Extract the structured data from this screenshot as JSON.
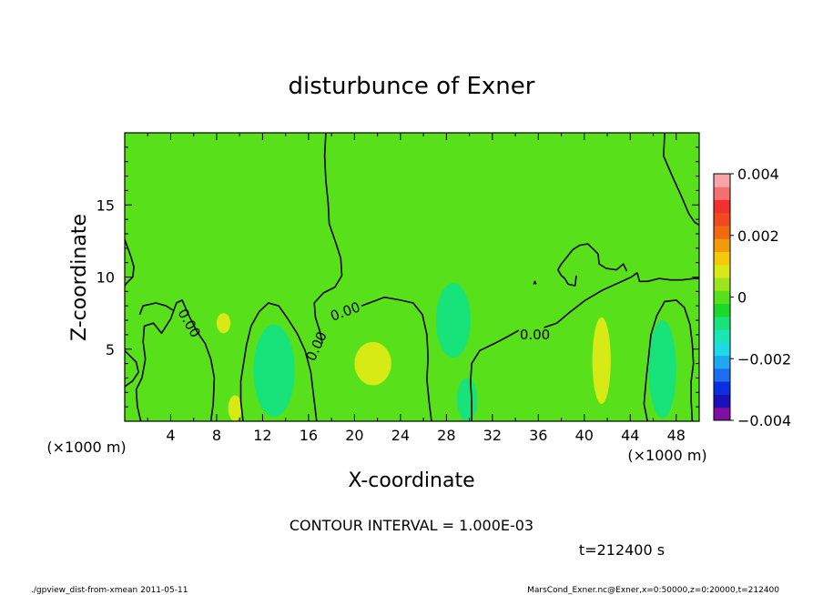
{
  "chart_data": {
    "type": "heatmap",
    "title": "disturbunce of Exner",
    "xlabel": "X-coordinate",
    "ylabel": "Z-coordinate",
    "x_unit_left": "(×1000 m)",
    "x_unit_right": "(×1000 m)",
    "xlim": [
      0,
      50
    ],
    "ylim": [
      0,
      20
    ],
    "x_ticks": [
      4,
      8,
      12,
      16,
      20,
      24,
      28,
      32,
      36,
      40,
      44,
      48
    ],
    "y_ticks": [
      5,
      10,
      15
    ],
    "contour_interval_text": "CONTOUR INTERVAL = 1.000E-03",
    "time_text": "t=212400 s",
    "contour_labels": [
      {
        "text": "0.00",
        "x": 5.6,
        "z": 6.8,
        "angle": 60
      },
      {
        "text": "0.00",
        "x": 16.7,
        "z": 5.2,
        "angle": -65
      },
      {
        "text": "0.00",
        "x": 19.2,
        "z": 7.6,
        "angle": -20
      },
      {
        "text": "0.00",
        "x": 35.7,
        "z": 6.0,
        "angle": 0
      }
    ],
    "colorbar": {
      "min": -0.004,
      "max": 0.004,
      "tick_labels": [
        "0.004",
        "0.002",
        "0",
        "−0.002",
        "−0.004"
      ],
      "tick_values": [
        0.004,
        0.002,
        0,
        -0.002,
        -0.004
      ],
      "colors_bottom_to_top": [
        "#7f0fa0",
        "#1d0fb8",
        "#0b2fe0",
        "#1b6ef0",
        "#1fa8f2",
        "#1fd8e8",
        "#1ae6b4",
        "#18e37a",
        "#1bd928",
        "#58e01a",
        "#9ae61c",
        "#d8ea16",
        "#f5c808",
        "#f39a08",
        "#f26a10",
        "#f24a20",
        "#f23030",
        "#f57070",
        "#f6a6a6"
      ]
    },
    "field": {
      "background_level": 0,
      "regions": [
        {
          "level": -0.001,
          "x": 13.0,
          "z": 3.5,
          "rx": 1.8,
          "rz": 3.2
        },
        {
          "level": -0.001,
          "x": 28.6,
          "z": 7.0,
          "rx": 1.5,
          "rz": 2.6
        },
        {
          "level": -0.001,
          "x": 29.8,
          "z": 1.5,
          "rx": 0.9,
          "rz": 1.5
        },
        {
          "level": -0.001,
          "x": 46.8,
          "z": 3.6,
          "rx": 1.2,
          "rz": 3.4
        },
        {
          "level": 0.001,
          "x": 21.6,
          "z": 4.0,
          "rx": 1.6,
          "rz": 1.5
        },
        {
          "level": 0.001,
          "x": 41.5,
          "z": 4.2,
          "rx": 0.8,
          "rz": 3.0
        },
        {
          "level": 0.001,
          "x": 8.6,
          "z": 6.8,
          "rx": 0.6,
          "rz": 0.7
        },
        {
          "level": 0.001,
          "x": 9.6,
          "z": 0.9,
          "rx": 0.6,
          "rz": 0.9
        }
      ],
      "zero_contours": [
        [
          [
            0,
            12.6
          ],
          [
            0.5,
            11.5
          ],
          [
            0.8,
            10.7
          ],
          [
            0.7,
            10.0
          ],
          [
            0.2,
            9.6
          ],
          [
            0,
            9.4
          ]
        ],
        [
          [
            0,
            4.9
          ],
          [
            0.5,
            4.5
          ],
          [
            1,
            4.1
          ],
          [
            1.2,
            3.4
          ],
          [
            0.7,
            2.8
          ],
          [
            0,
            2.4
          ]
        ],
        [
          [
            1.4,
            0
          ],
          [
            1.1,
            1.0
          ],
          [
            1.0,
            2.2
          ],
          [
            1.5,
            3.0
          ],
          [
            1.8,
            4.3
          ],
          [
            1.6,
            5.5
          ],
          [
            1.7,
            6.6
          ],
          [
            2.5,
            6.8
          ],
          [
            3.2,
            6.1
          ],
          [
            4.0,
            7.1
          ],
          [
            4.5,
            8.2
          ],
          [
            5.0,
            8.4
          ],
          [
            5.6,
            7.3
          ],
          [
            6.3,
            6.2
          ],
          [
            7.0,
            5.4
          ],
          [
            7.5,
            4.3
          ],
          [
            7.8,
            3.0
          ],
          [
            7.7,
            1.2
          ],
          [
            7.5,
            0
          ]
        ],
        [
          [
            1.3,
            7.4
          ],
          [
            1.6,
            8.0
          ],
          [
            2.7,
            8.2
          ],
          [
            3.6,
            8.0
          ],
          [
            4.2,
            7.7
          ]
        ],
        [
          [
            10.3,
            0
          ],
          [
            10.1,
            1.4
          ],
          [
            10.1,
            2.8
          ],
          [
            10.3,
            3.8
          ],
          [
            10.6,
            5.3
          ],
          [
            11.0,
            6.6
          ],
          [
            11.7,
            7.6
          ],
          [
            12.5,
            8.2
          ],
          [
            13.4,
            8.0
          ],
          [
            14.2,
            7.1
          ],
          [
            15.0,
            6.1
          ],
          [
            15.7,
            4.9
          ],
          [
            16.2,
            3.4
          ],
          [
            16.4,
            2.0
          ],
          [
            16.6,
            0.7
          ],
          [
            16.7,
            0
          ]
        ],
        [
          [
            17.2,
            5.4
          ],
          [
            17.0,
            6.2
          ],
          [
            16.6,
            7.2
          ],
          [
            16.5,
            8.2
          ],
          [
            17.3,
            8.9
          ],
          [
            18.3,
            9.3
          ],
          [
            18.9,
            10.1
          ],
          [
            18.8,
            11.3
          ],
          [
            18.4,
            12.3
          ],
          [
            17.8,
            13.7
          ],
          [
            17.7,
            15.2
          ],
          [
            17.5,
            16.7
          ],
          [
            17.4,
            18.4
          ],
          [
            17.5,
            20
          ]
        ],
        [
          [
            20.6,
            8.0
          ],
          [
            22.6,
            8.6
          ],
          [
            24.0,
            8.4
          ],
          [
            25.1,
            8.2
          ],
          [
            25.9,
            7.4
          ],
          [
            26.3,
            6.0
          ],
          [
            26.4,
            4.4
          ],
          [
            26.3,
            2.9
          ],
          [
            26.5,
            1.3
          ],
          [
            26.7,
            0
          ]
        ],
        [
          [
            30.2,
            0
          ],
          [
            30.2,
            1.4
          ],
          [
            30.1,
            2.7
          ],
          [
            30.2,
            4.0
          ],
          [
            30.9,
            4.9
          ],
          [
            32.2,
            5.4
          ],
          [
            33.4,
            5.9
          ],
          [
            34.3,
            6.3
          ]
        ],
        [
          [
            36.5,
            6.5
          ],
          [
            37.6,
            6.8
          ],
          [
            38.8,
            7.6
          ],
          [
            40.1,
            8.4
          ],
          [
            41.6,
            9.1
          ],
          [
            43.0,
            9.6
          ],
          [
            44.1,
            10.0
          ],
          [
            44.6,
            10.3
          ]
        ],
        [
          [
            37.7,
            10.5
          ],
          [
            38.0,
            10.9
          ],
          [
            38.5,
            11.4
          ],
          [
            39.0,
            11.9
          ],
          [
            39.6,
            12.2
          ],
          [
            40.3,
            12.3
          ],
          [
            40.7,
            12.0
          ],
          [
            41.2,
            11.6
          ],
          [
            41.3,
            10.9
          ],
          [
            41.9,
            10.6
          ],
          [
            42.8,
            10.5
          ],
          [
            43.4,
            10.9
          ],
          [
            43.7,
            10.4
          ]
        ],
        [
          [
            39.3,
            10.1
          ],
          [
            39.2,
            9.4
          ],
          [
            38.6,
            9.5
          ],
          [
            38.3,
            9.9
          ],
          [
            38.0,
            10.1
          ],
          [
            37.7,
            10.5
          ]
        ],
        [
          [
            44.6,
            10.3
          ],
          [
            44.8,
            9.7
          ],
          [
            45.5,
            9.7
          ],
          [
            46.5,
            9.9
          ],
          [
            47.5,
            9.8
          ],
          [
            48.5,
            9.8
          ],
          [
            49.6,
            9.9
          ],
          [
            50,
            9.9
          ]
        ],
        [
          [
            45.5,
            0
          ],
          [
            45.2,
            1.2
          ],
          [
            45.4,
            3.0
          ],
          [
            45.6,
            4.5
          ],
          [
            45.8,
            6.0
          ],
          [
            46.3,
            7.3
          ],
          [
            47.0,
            8.3
          ],
          [
            48.0,
            8.4
          ],
          [
            48.7,
            7.9
          ],
          [
            49.2,
            6.7
          ],
          [
            49.4,
            5.4
          ],
          [
            49.5,
            4.0
          ],
          [
            49.3,
            2.8
          ],
          [
            49.3,
            1.4
          ],
          [
            49.4,
            0
          ]
        ],
        [
          [
            47.0,
            20
          ],
          [
            46.9,
            18.4
          ],
          [
            47.6,
            17.1
          ],
          [
            48.4,
            15.7
          ],
          [
            49.1,
            14.4
          ],
          [
            49.6,
            13.8
          ],
          [
            50,
            13.6
          ]
        ],
        [
          [
            35.6,
            9.5
          ],
          [
            35.7,
            9.7
          ],
          [
            35.8,
            9.5
          ]
        ]
      ]
    }
  },
  "footer": {
    "left": "./gpview_dist-from-xmean  2011-05-11",
    "right": "MarsCond_Exner.nc@Exner,x=0:50000,z=0:20000,t=212400"
  }
}
